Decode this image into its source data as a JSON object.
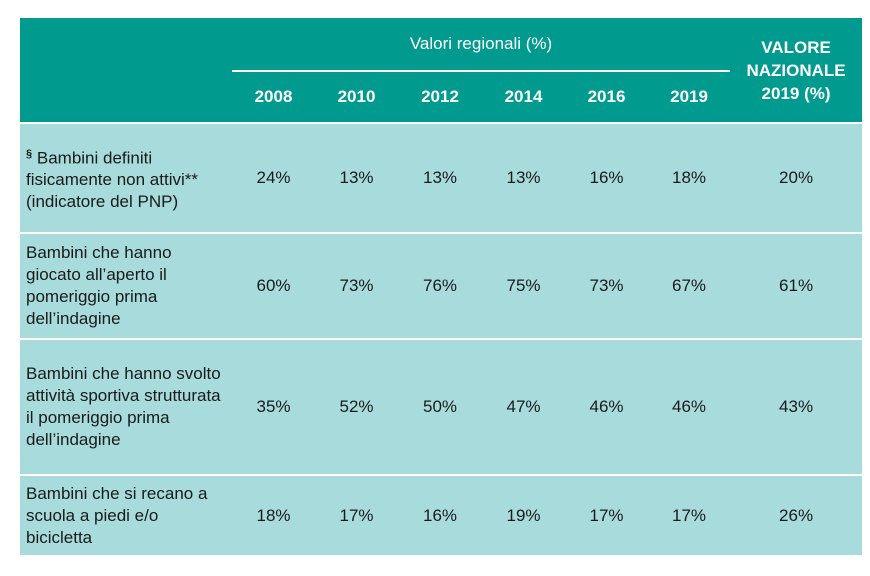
{
  "header": {
    "group_title": "Valori regionali (%)",
    "national_title": "VALORE NAZIONALE 2019 (%)",
    "years": [
      "2008",
      "2010",
      "2012",
      "2014",
      "2016",
      "2019"
    ]
  },
  "table": {
    "rows": [
      {
        "note_mark": "§",
        "label": "Bambini definiti fisicamente non attivi** (indicatore del PNP)",
        "values": [
          "24%",
          "13%",
          "13%",
          "13%",
          "16%",
          "18%"
        ],
        "national": "20%"
      },
      {
        "label": "Bambini che hanno giocato all’aperto il pomeriggio prima dell’indagine",
        "values": [
          "60%",
          "73%",
          "76%",
          "75%",
          "73%",
          "67%"
        ],
        "national": "61%"
      },
      {
        "label": "Bambini che hanno svolto attività sportiva strutturata il pomeriggio prima dell’indagine",
        "values": [
          "35%",
          "52%",
          "50%",
          "47%",
          "46%",
          "46%"
        ],
        "national": "43%"
      },
      {
        "label": "Bambini che si recano a scuola a piedi e/o bicicletta",
        "values": [
          "18%",
          "17%",
          "16%",
          "19%",
          "17%",
          "17%"
        ],
        "national": "26%"
      }
    ]
  }
}
